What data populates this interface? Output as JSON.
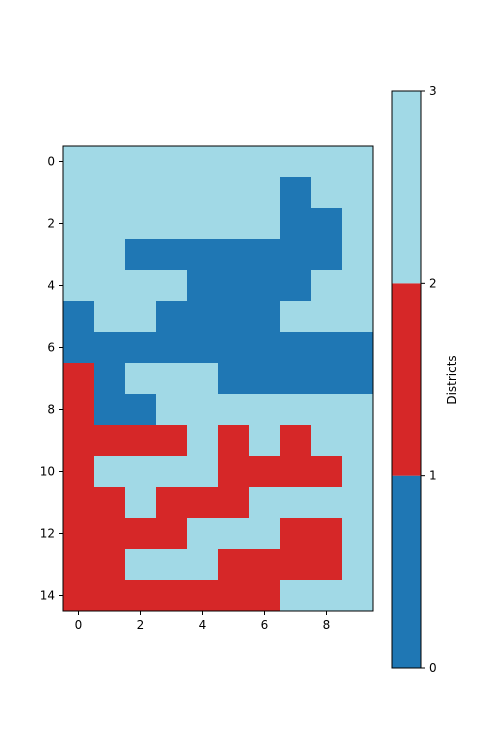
{
  "chart_data": {
    "type": "heatmap",
    "title": "",
    "xlabel": "",
    "ylabel": "",
    "n_rows": 15,
    "n_cols": 10,
    "x_ticks": [
      0,
      2,
      4,
      6,
      8
    ],
    "y_ticks": [
      0,
      2,
      4,
      6,
      8,
      10,
      12,
      14
    ],
    "grid": [
      [
        2,
        2,
        2,
        2,
        2,
        2,
        2,
        2,
        2,
        2
      ],
      [
        2,
        2,
        2,
        2,
        2,
        2,
        2,
        0,
        2,
        2
      ],
      [
        2,
        2,
        2,
        2,
        2,
        2,
        2,
        0,
        0,
        2
      ],
      [
        2,
        2,
        0,
        0,
        0,
        0,
        0,
        0,
        0,
        2
      ],
      [
        2,
        2,
        2,
        2,
        0,
        0,
        0,
        0,
        2,
        2
      ],
      [
        0,
        2,
        2,
        0,
        0,
        0,
        0,
        2,
        2,
        2
      ],
      [
        0,
        0,
        0,
        0,
        0,
        0,
        0,
        0,
        0,
        0
      ],
      [
        1,
        0,
        2,
        2,
        2,
        0,
        0,
        0,
        0,
        0
      ],
      [
        1,
        0,
        0,
        2,
        2,
        2,
        2,
        2,
        2,
        2
      ],
      [
        1,
        1,
        1,
        1,
        2,
        1,
        2,
        1,
        2,
        2
      ],
      [
        1,
        2,
        2,
        2,
        2,
        1,
        1,
        1,
        1,
        2
      ],
      [
        1,
        1,
        2,
        1,
        1,
        1,
        2,
        2,
        2,
        2
      ],
      [
        1,
        1,
        1,
        1,
        2,
        2,
        2,
        1,
        1,
        2
      ],
      [
        1,
        1,
        2,
        2,
        2,
        1,
        1,
        1,
        1,
        2
      ],
      [
        1,
        1,
        1,
        1,
        1,
        1,
        1,
        2,
        2,
        2
      ]
    ],
    "colors": [
      "#1f77b4",
      "#d62728",
      "#a1d9e6"
    ],
    "colorbar": {
      "label": "Districts",
      "range": [
        0,
        3
      ],
      "ticks": [
        0,
        1,
        2,
        3
      ]
    }
  }
}
